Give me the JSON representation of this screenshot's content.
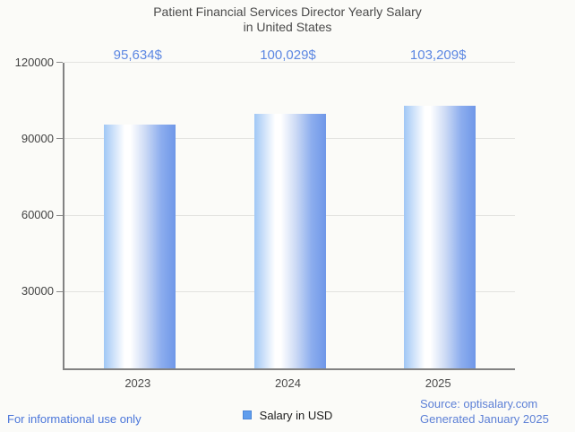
{
  "title": {
    "line1": "Patient Financial Services Director Yearly Salary",
    "line2": "in United States"
  },
  "chart_data": {
    "type": "bar",
    "title": "Patient Financial Services Director Yearly Salary in United States",
    "categories": [
      "2023",
      "2024",
      "2025"
    ],
    "values": [
      95634,
      100029,
      103209
    ],
    "value_labels": [
      "95,634$",
      "100,029$",
      "103,209$"
    ],
    "xlabel": "",
    "ylabel": "",
    "ylim": [
      0,
      120000
    ],
    "yticks": [
      120000,
      90000,
      60000,
      30000
    ],
    "ytick_labels": [
      "120000",
      "90000",
      "60000",
      "30000"
    ],
    "grid": true,
    "legend_position": "bottom",
    "bar_gradient": [
      "#a0c7f5",
      "#ffffff",
      "#6f97e8"
    ]
  },
  "legend": {
    "label": "Salary in USD",
    "swatch_color": "#5f9ded"
  },
  "footer": {
    "disclaimer": "For informational use only",
    "source": "Source: optisalary.com",
    "generated": "Generated January 2025"
  },
  "colors": {
    "background": "#fbfbf8",
    "title_text": "#4a4a4a",
    "value_label_blue": "#5c87e2",
    "footer_blue": "#4b76da",
    "axis_gray": "#828282",
    "grid_gray": "#e3e3e0"
  }
}
